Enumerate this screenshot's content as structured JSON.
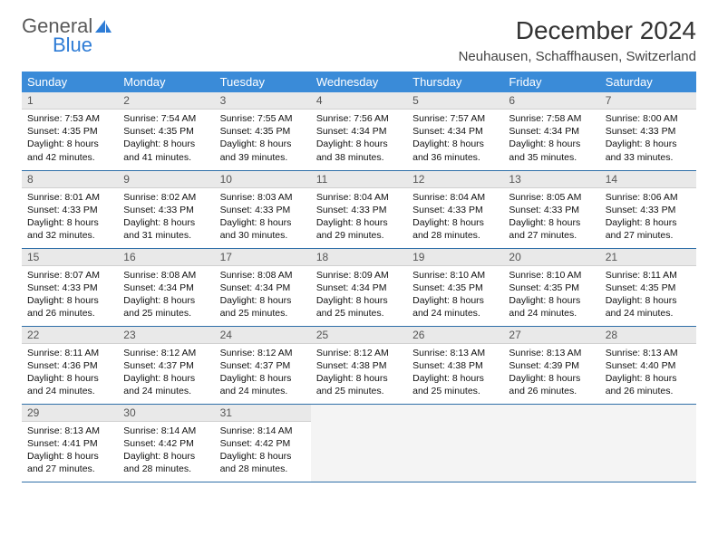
{
  "brand": {
    "word1": "General",
    "word2": "Blue"
  },
  "title": "December 2024",
  "location": "Neuhausen, Schaffhausen, Switzerland",
  "colors": {
    "header_bg": "#3a8bd8",
    "header_text": "#ffffff",
    "daynum_bg": "#e9e9e9",
    "row_divider": "#2f6fa8",
    "logo_blue": "#2e7cd6",
    "body_text": "#111111"
  },
  "weekdays": [
    "Sunday",
    "Monday",
    "Tuesday",
    "Wednesday",
    "Thursday",
    "Friday",
    "Saturday"
  ],
  "weeks": [
    [
      {
        "n": "1",
        "sr": "7:53 AM",
        "ss": "4:35 PM",
        "dl": "8 hours and 42 minutes."
      },
      {
        "n": "2",
        "sr": "7:54 AM",
        "ss": "4:35 PM",
        "dl": "8 hours and 41 minutes."
      },
      {
        "n": "3",
        "sr": "7:55 AM",
        "ss": "4:35 PM",
        "dl": "8 hours and 39 minutes."
      },
      {
        "n": "4",
        "sr": "7:56 AM",
        "ss": "4:34 PM",
        "dl": "8 hours and 38 minutes."
      },
      {
        "n": "5",
        "sr": "7:57 AM",
        "ss": "4:34 PM",
        "dl": "8 hours and 36 minutes."
      },
      {
        "n": "6",
        "sr": "7:58 AM",
        "ss": "4:34 PM",
        "dl": "8 hours and 35 minutes."
      },
      {
        "n": "7",
        "sr": "8:00 AM",
        "ss": "4:33 PM",
        "dl": "8 hours and 33 minutes."
      }
    ],
    [
      {
        "n": "8",
        "sr": "8:01 AM",
        "ss": "4:33 PM",
        "dl": "8 hours and 32 minutes."
      },
      {
        "n": "9",
        "sr": "8:02 AM",
        "ss": "4:33 PM",
        "dl": "8 hours and 31 minutes."
      },
      {
        "n": "10",
        "sr": "8:03 AM",
        "ss": "4:33 PM",
        "dl": "8 hours and 30 minutes."
      },
      {
        "n": "11",
        "sr": "8:04 AM",
        "ss": "4:33 PM",
        "dl": "8 hours and 29 minutes."
      },
      {
        "n": "12",
        "sr": "8:04 AM",
        "ss": "4:33 PM",
        "dl": "8 hours and 28 minutes."
      },
      {
        "n": "13",
        "sr": "8:05 AM",
        "ss": "4:33 PM",
        "dl": "8 hours and 27 minutes."
      },
      {
        "n": "14",
        "sr": "8:06 AM",
        "ss": "4:33 PM",
        "dl": "8 hours and 27 minutes."
      }
    ],
    [
      {
        "n": "15",
        "sr": "8:07 AM",
        "ss": "4:33 PM",
        "dl": "8 hours and 26 minutes."
      },
      {
        "n": "16",
        "sr": "8:08 AM",
        "ss": "4:34 PM",
        "dl": "8 hours and 25 minutes."
      },
      {
        "n": "17",
        "sr": "8:08 AM",
        "ss": "4:34 PM",
        "dl": "8 hours and 25 minutes."
      },
      {
        "n": "18",
        "sr": "8:09 AM",
        "ss": "4:34 PM",
        "dl": "8 hours and 25 minutes."
      },
      {
        "n": "19",
        "sr": "8:10 AM",
        "ss": "4:35 PM",
        "dl": "8 hours and 24 minutes."
      },
      {
        "n": "20",
        "sr": "8:10 AM",
        "ss": "4:35 PM",
        "dl": "8 hours and 24 minutes."
      },
      {
        "n": "21",
        "sr": "8:11 AM",
        "ss": "4:35 PM",
        "dl": "8 hours and 24 minutes."
      }
    ],
    [
      {
        "n": "22",
        "sr": "8:11 AM",
        "ss": "4:36 PM",
        "dl": "8 hours and 24 minutes."
      },
      {
        "n": "23",
        "sr": "8:12 AM",
        "ss": "4:37 PM",
        "dl": "8 hours and 24 minutes."
      },
      {
        "n": "24",
        "sr": "8:12 AM",
        "ss": "4:37 PM",
        "dl": "8 hours and 24 minutes."
      },
      {
        "n": "25",
        "sr": "8:12 AM",
        "ss": "4:38 PM",
        "dl": "8 hours and 25 minutes."
      },
      {
        "n": "26",
        "sr": "8:13 AM",
        "ss": "4:38 PM",
        "dl": "8 hours and 25 minutes."
      },
      {
        "n": "27",
        "sr": "8:13 AM",
        "ss": "4:39 PM",
        "dl": "8 hours and 26 minutes."
      },
      {
        "n": "28",
        "sr": "8:13 AM",
        "ss": "4:40 PM",
        "dl": "8 hours and 26 minutes."
      }
    ],
    [
      {
        "n": "29",
        "sr": "8:13 AM",
        "ss": "4:41 PM",
        "dl": "8 hours and 27 minutes."
      },
      {
        "n": "30",
        "sr": "8:14 AM",
        "ss": "4:42 PM",
        "dl": "8 hours and 28 minutes."
      },
      {
        "n": "31",
        "sr": "8:14 AM",
        "ss": "4:42 PM",
        "dl": "8 hours and 28 minutes."
      },
      null,
      null,
      null,
      null
    ]
  ],
  "labels": {
    "sunrise": "Sunrise:",
    "sunset": "Sunset:",
    "daylight": "Daylight:"
  }
}
